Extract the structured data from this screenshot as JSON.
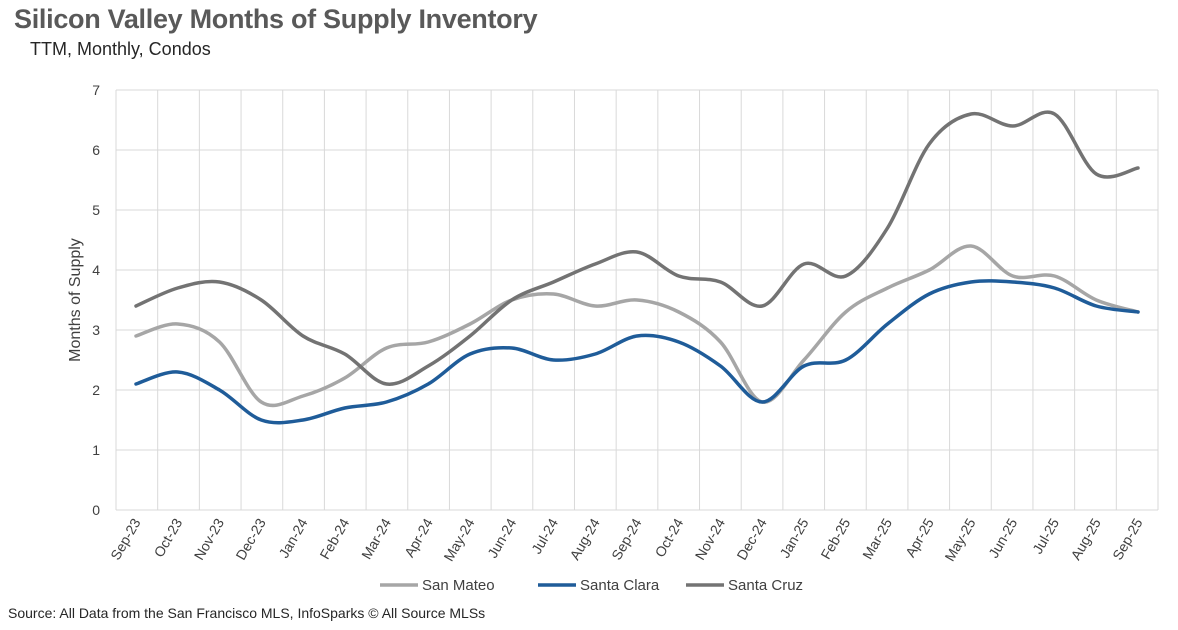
{
  "header": {
    "title": "Silicon Valley Months of Supply Inventory",
    "subtitle": "TTM, Monthly, Condos"
  },
  "footer": {
    "source": "Source: All Data from the San Francisco MLS, InfoSparks © All Source MLSs"
  },
  "chart_data": {
    "type": "line",
    "title": "Silicon Valley Months of Supply Inventory",
    "subtitle": "TTM, Monthly, Condos",
    "xlabel": "",
    "ylabel": "Months of Supply",
    "ylim": [
      0,
      7
    ],
    "yticks": [
      0,
      1,
      2,
      3,
      4,
      5,
      6,
      7
    ],
    "grid": true,
    "legend": "bottom",
    "categories": [
      "Sep-23",
      "Oct-23",
      "Nov-23",
      "Dec-23",
      "Jan-24",
      "Feb-24",
      "Mar-24",
      "Apr-24",
      "May-24",
      "Jun-24",
      "Jul-24",
      "Aug-24",
      "Sep-24",
      "Oct-24",
      "Nov-24",
      "Dec-24",
      "Jan-25",
      "Feb-25",
      "Mar-25",
      "Apr-25",
      "May-25",
      "Jun-25",
      "Jul-25",
      "Aug-25",
      "Sep-25"
    ],
    "series": [
      {
        "name": "San Mateo",
        "color": "#A6A6A6",
        "values": [
          2.9,
          3.1,
          2.8,
          1.8,
          1.9,
          2.2,
          2.7,
          2.8,
          3.1,
          3.5,
          3.6,
          3.4,
          3.5,
          3.3,
          2.8,
          1.8,
          2.5,
          3.3,
          3.7,
          4.0,
          4.4,
          3.9,
          3.9,
          3.5,
          3.3
        ]
      },
      {
        "name": "Santa Clara",
        "color": "#1F5C99",
        "values": [
          2.1,
          2.3,
          2.0,
          1.5,
          1.5,
          1.7,
          1.8,
          2.1,
          2.6,
          2.7,
          2.5,
          2.6,
          2.9,
          2.8,
          2.4,
          1.8,
          2.4,
          2.5,
          3.1,
          3.6,
          3.8,
          3.8,
          3.7,
          3.4,
          3.3
        ]
      },
      {
        "name": "Santa Cruz",
        "color": "#737373",
        "values": [
          3.4,
          3.7,
          3.8,
          3.5,
          2.9,
          2.6,
          2.1,
          2.4,
          2.9,
          3.5,
          3.8,
          4.1,
          4.3,
          3.9,
          3.8,
          3.4,
          4.1,
          3.9,
          4.7,
          6.1,
          6.6,
          6.4,
          6.6,
          5.6,
          5.7
        ]
      }
    ]
  }
}
